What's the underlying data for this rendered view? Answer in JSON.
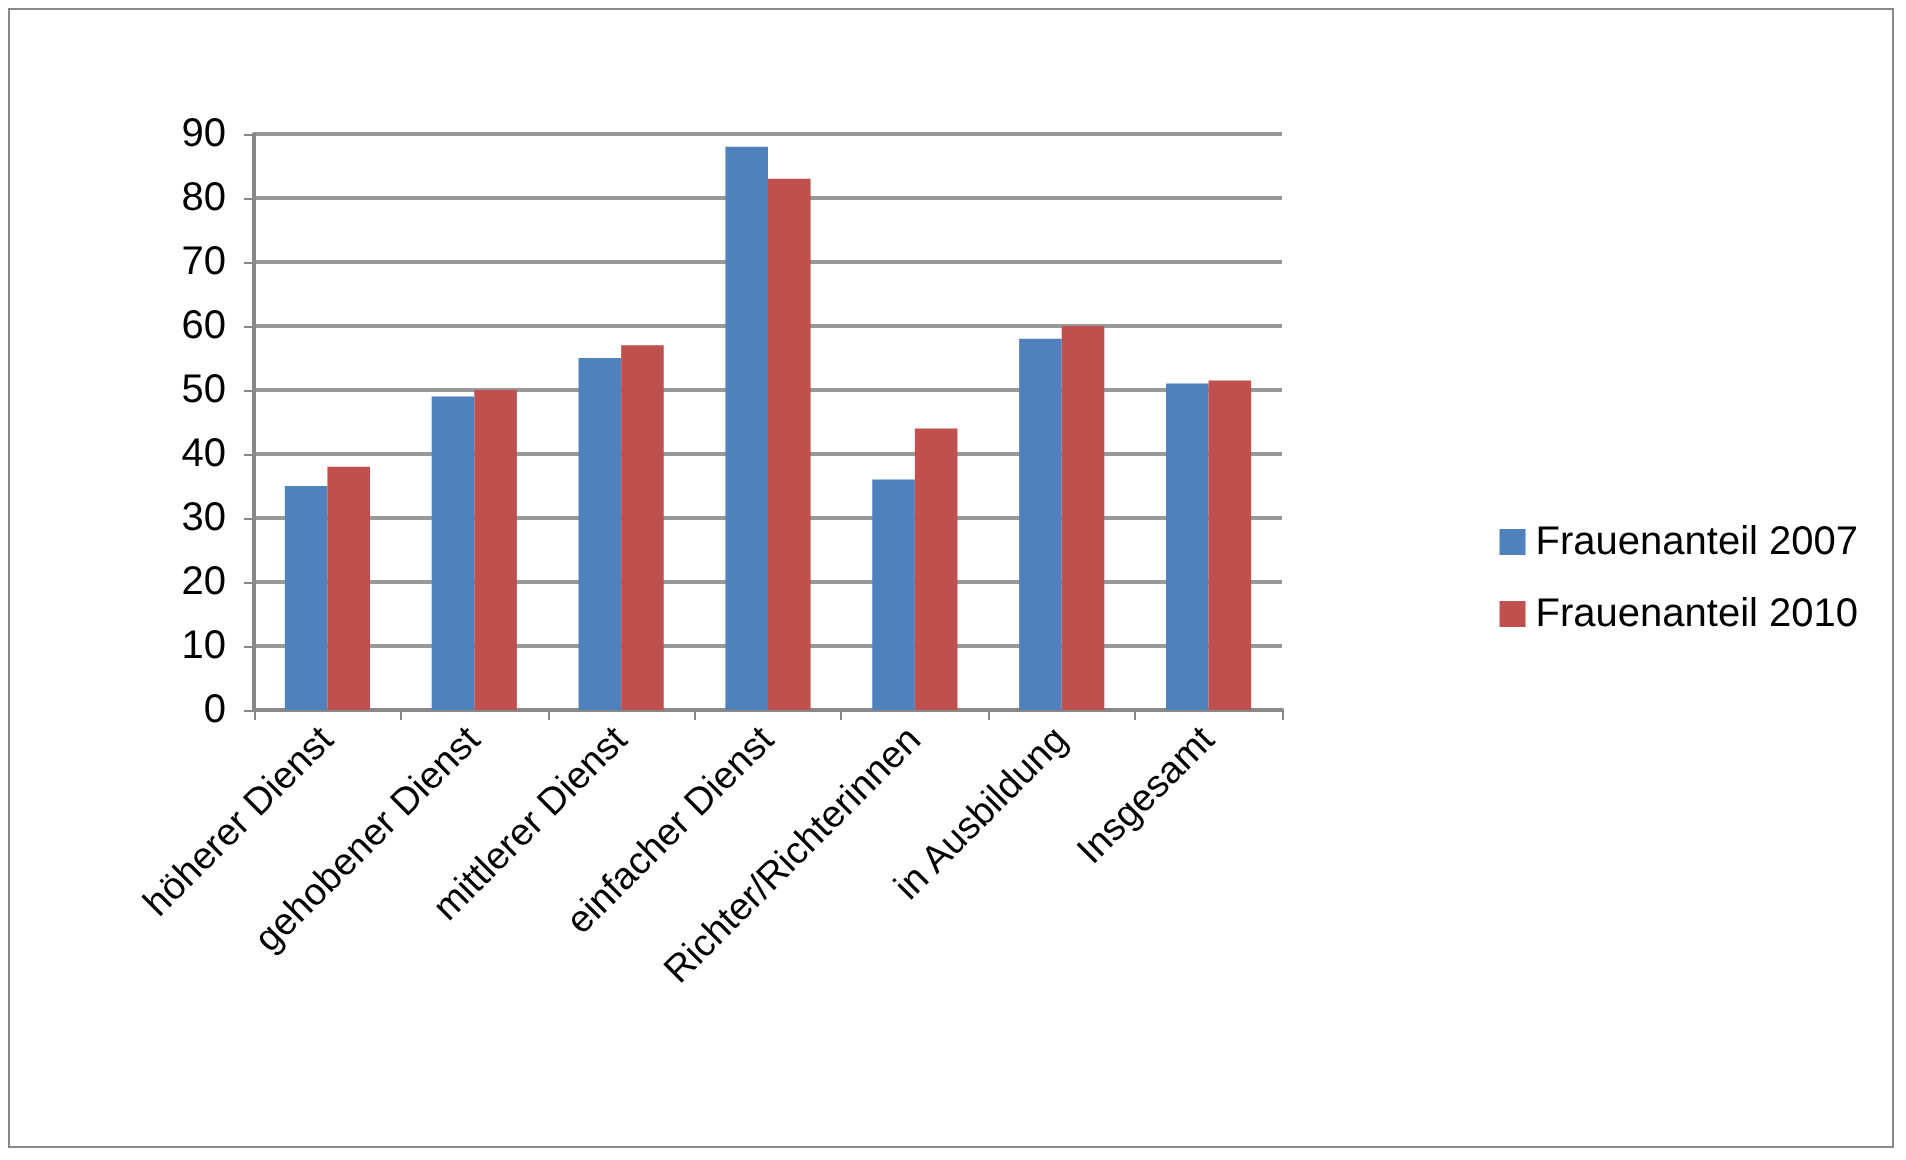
{
  "chart_data": {
    "type": "bar",
    "categories": [
      "höherer Dienst",
      "gehobener Dienst",
      "mittlerer Dienst",
      "einfacher Dienst",
      "Richter/Richterinnen",
      "in Ausbildung",
      "Insgesamt"
    ],
    "series": [
      {
        "name": "Frauenanteil 2007",
        "color": "#4f81bd",
        "values": [
          35,
          49,
          55,
          88,
          36,
          58,
          51
        ]
      },
      {
        "name": "Frauenanteil 2010",
        "color": "#c0504d",
        "values": [
          38,
          50,
          57,
          83,
          44,
          60,
          51.5
        ]
      }
    ],
    "ylim": [
      0,
      90
    ],
    "yticks": [
      0,
      10,
      20,
      30,
      40,
      50,
      60,
      70,
      80,
      90
    ],
    "grid": "y",
    "legend": "right"
  }
}
